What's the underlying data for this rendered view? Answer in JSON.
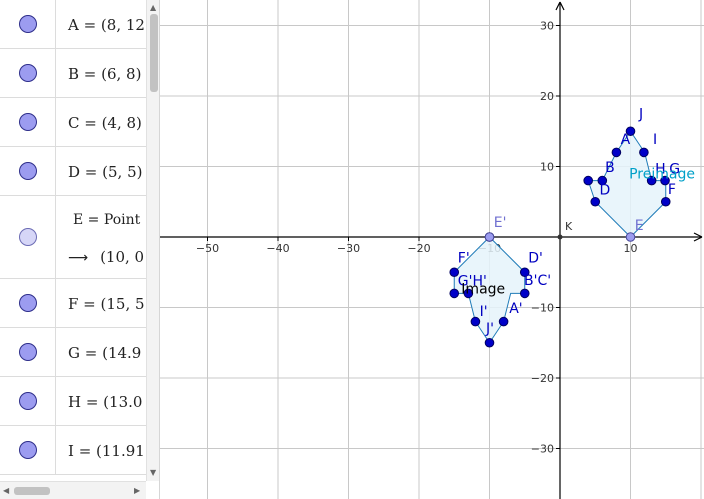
{
  "algebra_view": {
    "rows": [
      {
        "id": "A",
        "text": "A = (8, 12)",
        "marble": "filled"
      },
      {
        "id": "B",
        "text": "B = (6, 8)",
        "marble": "filled"
      },
      {
        "id": "C",
        "text": "C = (4, 8)",
        "marble": "filled"
      },
      {
        "id": "D",
        "text": "D = (5, 5)",
        "marble": "filled"
      },
      {
        "id": "E",
        "text": "E = Point",
        "subtext": "(10, 0",
        "arrow": "⟶",
        "marble": "light"
      },
      {
        "id": "F",
        "text": "F = (15, 5",
        "marble": "filled"
      },
      {
        "id": "G",
        "text": "G = (14.9",
        "marble": "filled"
      },
      {
        "id": "H",
        "text": "H = (13.0",
        "marble": "filled"
      },
      {
        "id": "I",
        "text": "I = (11.91",
        "marble": "filled"
      }
    ]
  },
  "graphics_view": {
    "x_ticks": [
      "−50",
      "−40",
      "−30",
      "−20",
      "−10",
      "10"
    ],
    "y_ticks": [
      "30",
      "20",
      "10",
      "−10",
      "−20",
      "−30"
    ],
    "origin_label": "K",
    "preimage": {
      "label": "Preimage",
      "label_color": "#00a0c8",
      "vertices": [
        [
          10,
          15
        ],
        [
          12,
          12
        ],
        [
          13,
          8
        ],
        [
          15,
          8
        ],
        [
          15,
          5
        ],
        [
          10,
          0
        ],
        [
          5,
          5
        ],
        [
          4,
          8
        ],
        [
          6,
          8
        ],
        [
          8,
          12
        ]
      ],
      "extra_points": [
        [
          8,
          12
        ],
        [
          6,
          8
        ],
        [
          4,
          8
        ],
        [
          5,
          5
        ],
        [
          15,
          5
        ],
        [
          14.9,
          8
        ],
        [
          13,
          8
        ],
        [
          11.9,
          12
        ],
        [
          10,
          15
        ]
      ],
      "labels": [
        {
          "text": "J",
          "at": [
            11.2,
            16.8
          ]
        },
        {
          "text": "I",
          "at": [
            13.2,
            13.2
          ]
        },
        {
          "text": "A",
          "at": [
            8.6,
            13.2
          ]
        },
        {
          "text": "B",
          "at": [
            6.4,
            9.2
          ]
        },
        {
          "text": "H",
          "at": [
            13.5,
            9.0
          ]
        },
        {
          "text": "G",
          "at": [
            15.5,
            9.0
          ]
        },
        {
          "text": "D",
          "at": [
            5.6,
            6.0
          ]
        },
        {
          "text": "F",
          "at": [
            15.3,
            6.1
          ]
        },
        {
          "text": "E",
          "at": [
            10.6,
            1.0
          ],
          "faint": true
        }
      ]
    },
    "image": {
      "label": "Image",
      "label_color": "#000000",
      "vertices": [
        [
          -10,
          -15
        ],
        [
          -8,
          -12
        ],
        [
          -7,
          -8
        ],
        [
          -5,
          -8
        ],
        [
          -5,
          -5
        ],
        [
          -10,
          0
        ],
        [
          -15,
          -5
        ],
        [
          -15,
          -8
        ],
        [
          -13,
          -8
        ],
        [
          -12,
          -12
        ]
      ],
      "extra_points": [
        [
          -12,
          -12
        ],
        [
          -13,
          -8
        ],
        [
          -15,
          -8
        ],
        [
          -15,
          -5
        ],
        [
          -10,
          0
        ],
        [
          -5,
          -5
        ],
        [
          -5,
          -8
        ],
        [
          -8,
          -12
        ],
        [
          -10,
          -15
        ]
      ],
      "labels": [
        {
          "text": "E'",
          "at": [
            -9.4,
            1.4
          ],
          "faint": true
        },
        {
          "text": "F'",
          "at": [
            -14.5,
            -3.6
          ]
        },
        {
          "text": "D'",
          "at": [
            -4.5,
            -3.6
          ]
        },
        {
          "text": "G'H'",
          "at": [
            -14.5,
            -6.9
          ]
        },
        {
          "text": "B'C'",
          "at": [
            -5.1,
            -6.8
          ]
        },
        {
          "text": "I'",
          "at": [
            -11.4,
            -11.2
          ]
        },
        {
          "text": "A'",
          "at": [
            -7.2,
            -10.8
          ]
        },
        {
          "text": "J'",
          "at": [
            -10.5,
            -13.6
          ]
        }
      ]
    },
    "colors": {
      "grid": "#c8c8c8",
      "axis": "#000000",
      "point_fill": "#0000c8",
      "point_stroke": "#000060",
      "poly_fill": "#e5f3fa",
      "poly_stroke": "#1e7bb8"
    }
  }
}
